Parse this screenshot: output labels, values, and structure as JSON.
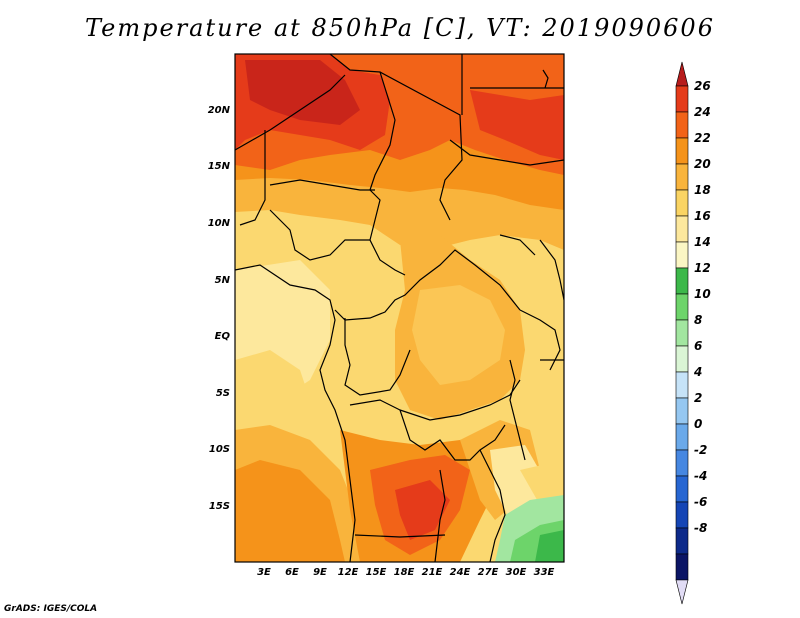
{
  "title": "Temperature at 850hPa [C], VT: 2019090606",
  "credit": "GrADS: IGES/COLA",
  "map": {
    "lat_labels": [
      "20N",
      "15N",
      "10N",
      "5N",
      "EQ",
      "5S",
      "10S",
      "15S"
    ],
    "lon_labels": [
      "3E",
      "6E",
      "9E",
      "12E",
      "15E",
      "18E",
      "21E",
      "24E",
      "27E",
      "30E",
      "33E"
    ]
  },
  "colorbar": {
    "labels": [
      "26",
      "24",
      "22",
      "20",
      "18",
      "16",
      "14",
      "12",
      "10",
      "8",
      "6",
      "4",
      "2",
      "0",
      "-2",
      "-4",
      "-6",
      "-8"
    ],
    "colors": [
      "#b71c1c",
      "#e53b1a",
      "#f26318",
      "#f5931a",
      "#f9b43c",
      "#fad463",
      "#fde89d",
      "#fbf6c4",
      "#3cb84a",
      "#6dd46a",
      "#a2e6a0",
      "#daf5d5",
      "#c6e3f8",
      "#95c7f1",
      "#6aa9ea",
      "#4687e1",
      "#2766d2",
      "#1545b5",
      "#0d2a8a",
      "#0b1565",
      "#e1dcf5"
    ]
  }
}
